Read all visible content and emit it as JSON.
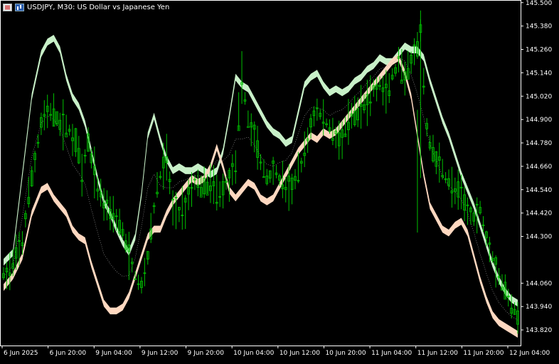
{
  "header": {
    "symbol_line": "USDJPY, M30:  US Dollar vs Japanese Yen",
    "icons": [
      "chart-menu-icon",
      "chart-type-icon"
    ]
  },
  "chart_data": {
    "type": "candlestick",
    "title": "USDJPY, M30:  US Dollar vs Japanese Yen",
    "ylim": [
      143.74,
      145.51
    ],
    "y_ticks": [
      145.5,
      145.38,
      145.26,
      145.14,
      145.02,
      144.9,
      144.78,
      144.66,
      144.54,
      144.42,
      144.3,
      144.06,
      143.94,
      143.82
    ],
    "y_tick_labels": [
      "145.500",
      "145.380",
      "145.260",
      "145.140",
      "145.020",
      "144.900",
      "144.780",
      "144.660",
      "144.540",
      "144.420",
      "144.300",
      "144.060",
      "143.940",
      "143.820"
    ],
    "x_tick_labels": [
      "6 Jun 2025",
      "6 Jun 20:00",
      "9 Jun 04:00",
      "9 Jun 12:00",
      "9 Jun 20:00",
      "10 Jun 04:00",
      "10 Jun 12:00",
      "10 Jun 20:00",
      "11 Jun 04:00",
      "11 Jun 12:00",
      "11 Jun 20:00",
      "12 Jun 04:00"
    ],
    "colors": {
      "background": "#000000",
      "candle": "#00c000",
      "upper_band": "#c8f0c8",
      "lower_band": "#ffd8c0",
      "middle_line": "#aaaaaa",
      "axis_text": "#ffffff",
      "highlight": "#e070e0"
    },
    "price_path": [
      [
        0,
        144.1
      ],
      [
        3,
        144.14
      ],
      [
        6,
        144.28
      ],
      [
        9,
        144.6
      ],
      [
        12,
        144.88
      ],
      [
        14,
        144.95
      ],
      [
        17,
        144.9
      ],
      [
        20,
        144.86
      ],
      [
        23,
        144.8
      ],
      [
        25,
        144.62
      ],
      [
        27,
        144.78
      ],
      [
        30,
        144.55
      ],
      [
        32,
        144.48
      ],
      [
        34,
        144.44
      ],
      [
        36,
        144.4
      ],
      [
        38,
        144.32
      ],
      [
        40,
        144.2
      ],
      [
        42,
        144.1
      ],
      [
        44,
        144.04
      ],
      [
        46,
        144.2
      ],
      [
        48,
        144.45
      ],
      [
        50,
        144.62
      ],
      [
        52,
        144.7
      ],
      [
        54,
        144.45
      ],
      [
        56,
        144.42
      ],
      [
        58,
        144.46
      ],
      [
        60,
        144.56
      ],
      [
        62,
        144.58
      ],
      [
        64,
        144.55
      ],
      [
        66,
        144.58
      ],
      [
        68,
        144.52
      ],
      [
        70,
        144.54
      ],
      [
        72,
        144.6
      ],
      [
        74,
        144.68
      ],
      [
        76,
        145.12
      ],
      [
        78,
        144.9
      ],
      [
        80,
        144.82
      ],
      [
        82,
        144.68
      ],
      [
        84,
        144.6
      ],
      [
        86,
        144.64
      ],
      [
        88,
        144.6
      ],
      [
        90,
        144.54
      ],
      [
        92,
        144.56
      ],
      [
        94,
        144.62
      ],
      [
        96,
        144.72
      ],
      [
        98,
        144.88
      ],
      [
        100,
        144.95
      ],
      [
        102,
        144.9
      ],
      [
        104,
        144.86
      ],
      [
        106,
        144.82
      ],
      [
        108,
        144.8
      ],
      [
        110,
        144.88
      ],
      [
        112,
        144.92
      ],
      [
        114,
        144.96
      ],
      [
        116,
        145.0
      ],
      [
        118,
        145.05
      ],
      [
        120,
        145.08
      ],
      [
        122,
        145.02
      ],
      [
        124,
        145.12
      ],
      [
        126,
        145.18
      ],
      [
        128,
        145.1
      ],
      [
        130,
        145.2
      ],
      [
        132,
        145.26
      ],
      [
        133,
        145.35
      ],
      [
        134,
        145.1
      ],
      [
        135,
        144.85
      ],
      [
        136,
        144.78
      ],
      [
        138,
        144.7
      ],
      [
        140,
        144.64
      ],
      [
        142,
        144.58
      ],
      [
        144,
        144.54
      ],
      [
        146,
        144.5
      ],
      [
        148,
        144.44
      ],
      [
        150,
        144.4
      ],
      [
        152,
        144.44
      ],
      [
        154,
        144.3
      ],
      [
        156,
        144.2
      ],
      [
        158,
        144.1
      ],
      [
        160,
        144.02
      ],
      [
        162,
        143.95
      ],
      [
        164,
        143.9
      ]
    ],
    "upper_band_path": [
      [
        0,
        144.15
      ],
      [
        3,
        144.2
      ],
      [
        6,
        144.6
      ],
      [
        9,
        145.0
      ],
      [
        12,
        145.22
      ],
      [
        14,
        145.28
      ],
      [
        16,
        145.3
      ],
      [
        18,
        145.24
      ],
      [
        20,
        145.1
      ],
      [
        22,
        145.0
      ],
      [
        24,
        144.95
      ],
      [
        26,
        144.86
      ],
      [
        28,
        144.72
      ],
      [
        30,
        144.58
      ],
      [
        32,
        144.46
      ],
      [
        34,
        144.4
      ],
      [
        36,
        144.32
      ],
      [
        38,
        144.25
      ],
      [
        40,
        144.2
      ],
      [
        42,
        144.28
      ],
      [
        44,
        144.5
      ],
      [
        46,
        144.8
      ],
      [
        48,
        144.9
      ],
      [
        50,
        144.78
      ],
      [
        52,
        144.68
      ],
      [
        54,
        144.62
      ],
      [
        56,
        144.64
      ],
      [
        58,
        144.62
      ],
      [
        60,
        144.62
      ],
      [
        62,
        144.64
      ],
      [
        64,
        144.62
      ],
      [
        66,
        144.6
      ],
      [
        68,
        144.62
      ],
      [
        70,
        144.72
      ],
      [
        72,
        144.9
      ],
      [
        74,
        145.1
      ],
      [
        76,
        145.06
      ],
      [
        78,
        145.04
      ],
      [
        80,
        144.98
      ],
      [
        82,
        144.92
      ],
      [
        84,
        144.86
      ],
      [
        86,
        144.82
      ],
      [
        88,
        144.8
      ],
      [
        90,
        144.76
      ],
      [
        92,
        144.78
      ],
      [
        94,
        144.92
      ],
      [
        96,
        145.06
      ],
      [
        98,
        145.1
      ],
      [
        100,
        145.12
      ],
      [
        102,
        145.06
      ],
      [
        104,
        145.02
      ],
      [
        106,
        145.04
      ],
      [
        108,
        145.02
      ],
      [
        110,
        145.04
      ],
      [
        112,
        145.08
      ],
      [
        114,
        145.1
      ],
      [
        116,
        145.14
      ],
      [
        118,
        145.16
      ],
      [
        120,
        145.2
      ],
      [
        122,
        145.18
      ],
      [
        124,
        145.18
      ],
      [
        126,
        145.22
      ],
      [
        128,
        145.26
      ],
      [
        130,
        145.24
      ],
      [
        132,
        145.24
      ],
      [
        134,
        145.2
      ],
      [
        136,
        145.08
      ],
      [
        138,
        144.98
      ],
      [
        140,
        144.88
      ],
      [
        142,
        144.8
      ],
      [
        144,
        144.7
      ],
      [
        146,
        144.6
      ],
      [
        148,
        144.52
      ],
      [
        150,
        144.44
      ],
      [
        152,
        144.34
      ],
      [
        154,
        144.24
      ],
      [
        156,
        144.14
      ],
      [
        158,
        144.06
      ],
      [
        160,
        144.0
      ],
      [
        162,
        143.96
      ],
      [
        164,
        143.94
      ]
    ],
    "lower_band_path": [
      [
        0,
        144.02
      ],
      [
        3,
        144.08
      ],
      [
        6,
        144.18
      ],
      [
        9,
        144.4
      ],
      [
        12,
        144.52
      ],
      [
        14,
        144.54
      ],
      [
        16,
        144.48
      ],
      [
        18,
        144.44
      ],
      [
        20,
        144.4
      ],
      [
        22,
        144.32
      ],
      [
        24,
        144.28
      ],
      [
        26,
        144.26
      ],
      [
        28,
        144.14
      ],
      [
        30,
        144.04
      ],
      [
        32,
        143.94
      ],
      [
        34,
        143.9
      ],
      [
        36,
        143.9
      ],
      [
        38,
        143.92
      ],
      [
        40,
        143.98
      ],
      [
        42,
        144.08
      ],
      [
        44,
        144.18
      ],
      [
        46,
        144.28
      ],
      [
        48,
        144.32
      ],
      [
        50,
        144.32
      ],
      [
        52,
        144.4
      ],
      [
        54,
        144.46
      ],
      [
        56,
        144.5
      ],
      [
        58,
        144.54
      ],
      [
        60,
        144.58
      ],
      [
        62,
        144.56
      ],
      [
        64,
        144.58
      ],
      [
        66,
        144.64
      ],
      [
        68,
        144.74
      ],
      [
        70,
        144.64
      ],
      [
        72,
        144.52
      ],
      [
        74,
        144.48
      ],
      [
        76,
        144.52
      ],
      [
        78,
        144.56
      ],
      [
        80,
        144.54
      ],
      [
        82,
        144.48
      ],
      [
        84,
        144.46
      ],
      [
        86,
        144.48
      ],
      [
        88,
        144.54
      ],
      [
        90,
        144.6
      ],
      [
        92,
        144.66
      ],
      [
        94,
        144.72
      ],
      [
        96,
        144.76
      ],
      [
        98,
        144.8
      ],
      [
        100,
        144.78
      ],
      [
        102,
        144.82
      ],
      [
        104,
        144.8
      ],
      [
        106,
        144.82
      ],
      [
        108,
        144.86
      ],
      [
        110,
        144.9
      ],
      [
        112,
        144.94
      ],
      [
        114,
        144.98
      ],
      [
        116,
        145.02
      ],
      [
        118,
        145.06
      ],
      [
        120,
        145.1
      ],
      [
        122,
        145.14
      ],
      [
        124,
        145.18
      ],
      [
        126,
        145.2
      ],
      [
        128,
        145.12
      ],
      [
        130,
        145.0
      ],
      [
        132,
        144.8
      ],
      [
        134,
        144.6
      ],
      [
        136,
        144.44
      ],
      [
        138,
        144.38
      ],
      [
        140,
        144.32
      ],
      [
        142,
        144.3
      ],
      [
        144,
        144.34
      ],
      [
        146,
        144.36
      ],
      [
        148,
        144.3
      ],
      [
        150,
        144.18
      ],
      [
        152,
        144.06
      ],
      [
        154,
        143.96
      ],
      [
        156,
        143.88
      ],
      [
        158,
        143.84
      ],
      [
        160,
        143.82
      ],
      [
        162,
        143.8
      ],
      [
        164,
        143.78
      ]
    ]
  }
}
